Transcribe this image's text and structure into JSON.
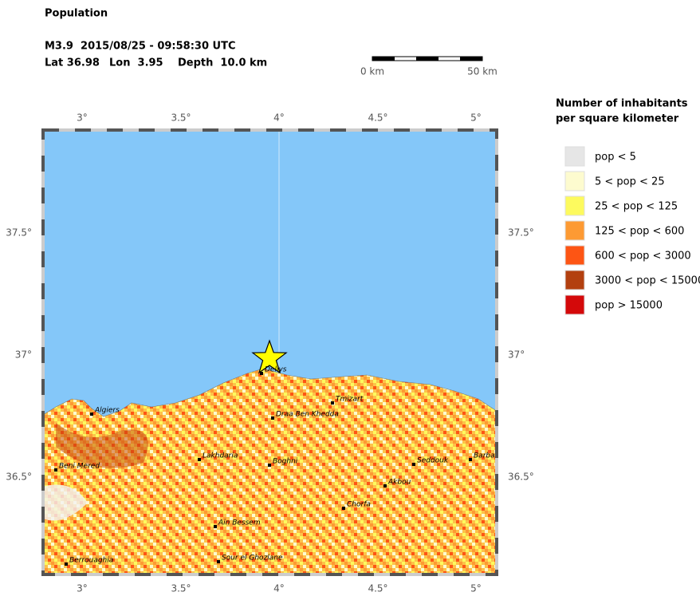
{
  "header": {
    "title": "Population",
    "event": "M3.9  2015/08/25 - 09:58:30 UTC",
    "lat": "Lat 36.98",
    "lon": "Lon  3.95",
    "depth": "Depth  10.0 km"
  },
  "scale_bar": {
    "start": "0 km",
    "end": "50 km"
  },
  "map": {
    "lon_labels": [
      "3°",
      "3.5°",
      "4°",
      "4.5°",
      "5°"
    ],
    "lat_labels": [
      "37.5°",
      "37°",
      "36.5°"
    ],
    "cities": [
      "Algiers",
      "Dellys",
      "Tmizart",
      "Draa Ben Khedda",
      "Lakhdaria",
      "Boghni",
      "Seddouk",
      "Barba",
      "Beni Mered",
      "Akbou",
      "Chorfa",
      "Ain Bessem",
      "Sour el Ghozlane",
      "Berrouaghia"
    ]
  },
  "legend": {
    "title_line1": "Number of inhabitants",
    "title_line2": "per square kilometer",
    "items": [
      {
        "label": "pop < 5",
        "color": "#e6e6e6"
      },
      {
        "label": "5 < pop < 25",
        "color": "#fdfbcf"
      },
      {
        "label": "25 < pop < 125",
        "color": "#fdfa5e"
      },
      {
        "label": "125 < pop < 600",
        "color": "#fd9a33"
      },
      {
        "label": "600 < pop < 3000",
        "color": "#fd5514"
      },
      {
        "label": "3000 < pop < 15000",
        "color": "#b3400f"
      },
      {
        "label": "pop > 15000",
        "color": "#d4090a"
      }
    ]
  }
}
